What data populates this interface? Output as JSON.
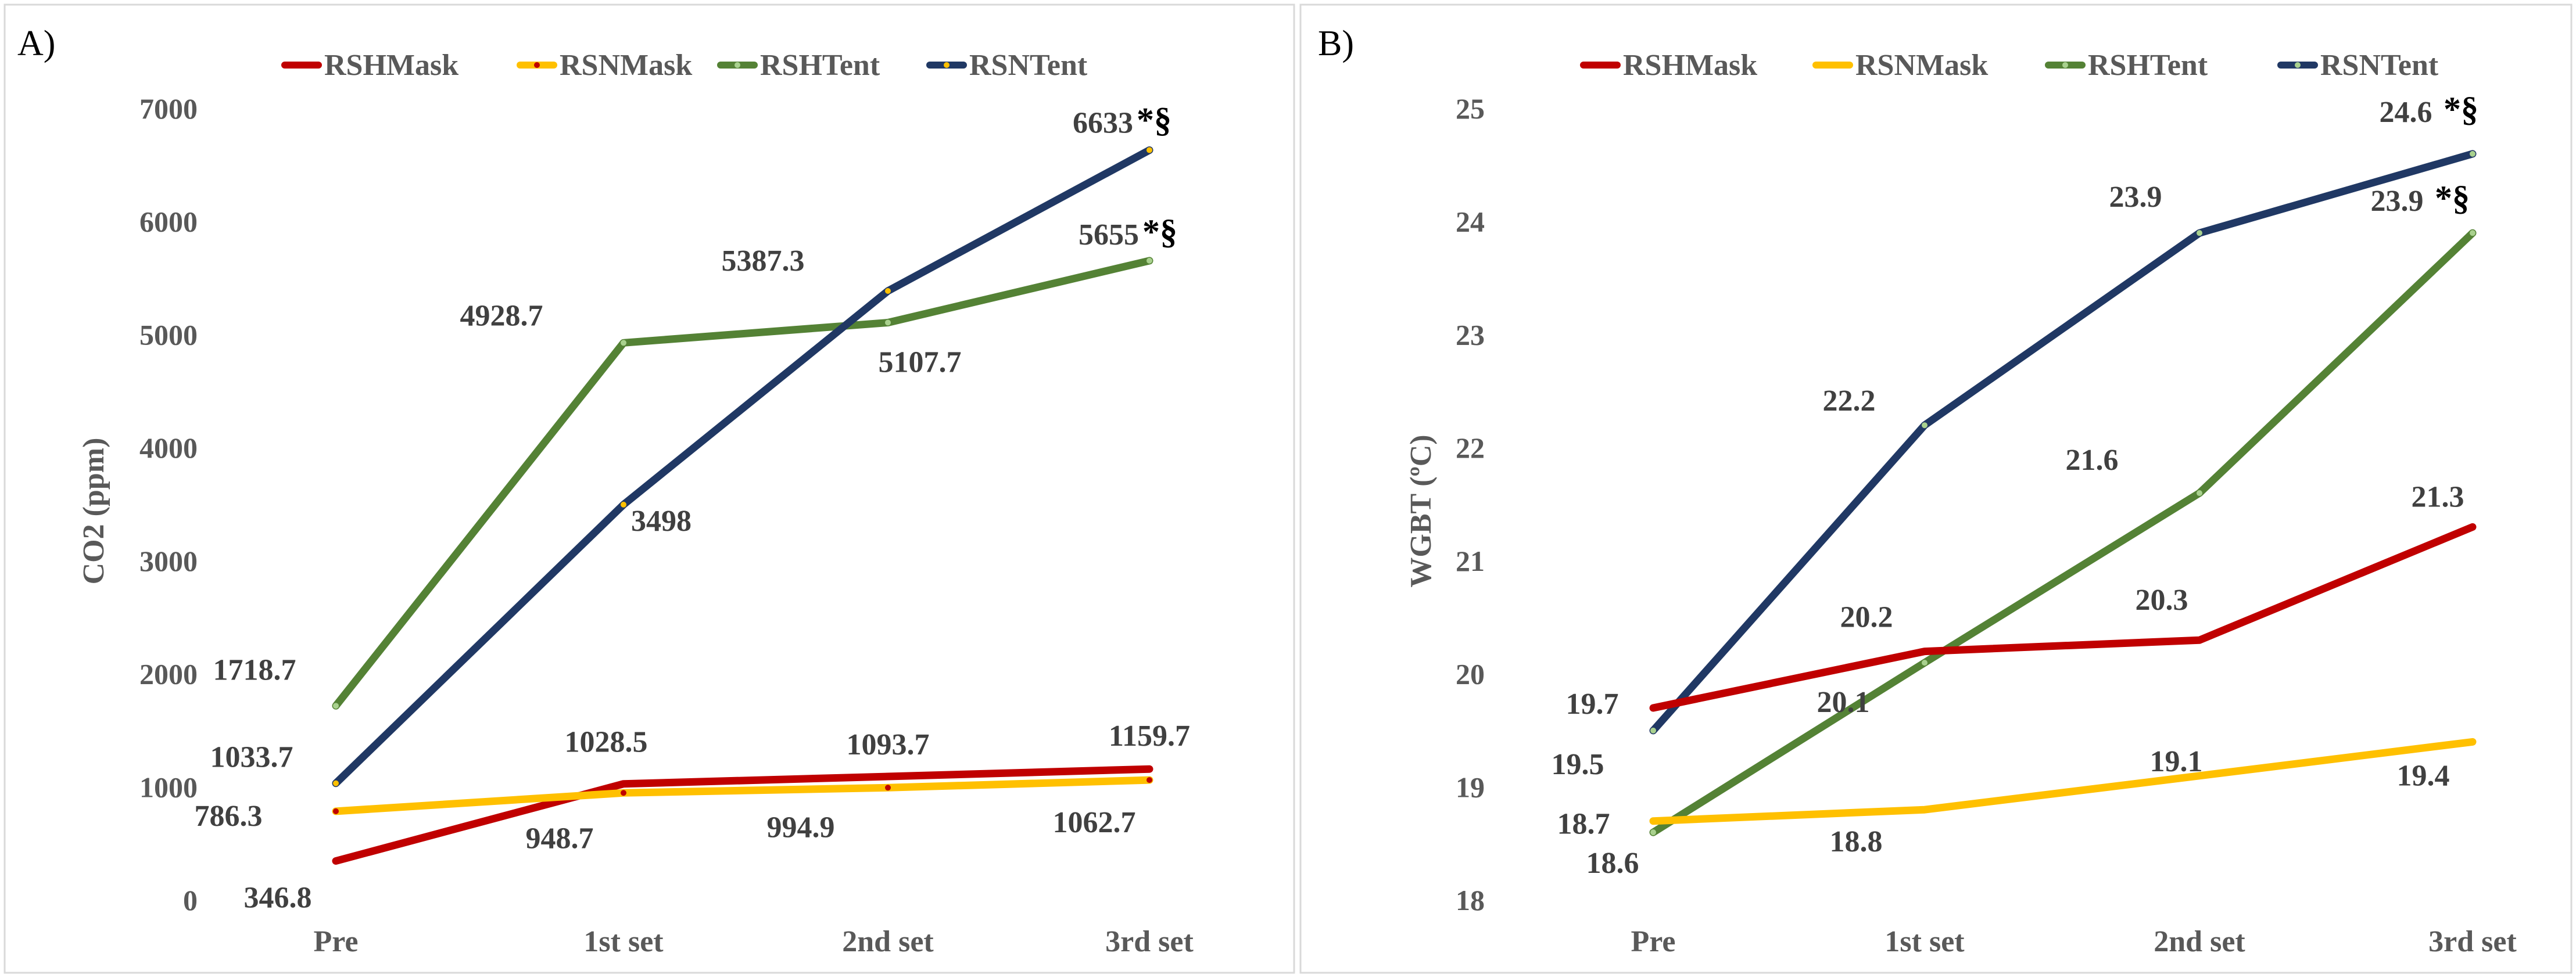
{
  "chart_data": [
    {
      "type": "line",
      "panel_label": "A)",
      "title": "",
      "xlabel": "",
      "ylabel": "CO2 (ppm)",
      "categories": [
        "Pre",
        "1st set",
        "2nd set",
        "3rd set"
      ],
      "ylim": [
        0,
        7000
      ],
      "yticks": [
        0,
        1000,
        2000,
        3000,
        4000,
        5000,
        6000,
        7000
      ],
      "grid": false,
      "legend_position": "top",
      "series": [
        {
          "name": "RSHMask",
          "color": "#C00000",
          "marker_color": "#C00000",
          "values": [
            346.8,
            1028.5,
            1093.7,
            1159.7
          ],
          "labels": [
            "346.8",
            "1028.5",
            "1093.7",
            "1159.7"
          ]
        },
        {
          "name": "RSNMask",
          "color": "#FFC000",
          "marker_color": "#C00000",
          "values": [
            786.3,
            948.7,
            994.9,
            1062.7
          ],
          "labels": [
            "786.3",
            "948.7",
            "994.9",
            "1062.7"
          ]
        },
        {
          "name": "RSHTent",
          "color": "#548235",
          "marker_color": "#A9D18E",
          "values": [
            1718.7,
            4928.7,
            5107.7,
            5655
          ],
          "labels": [
            "1718.7",
            "4928.7",
            "5107.7",
            "5655"
          ]
        },
        {
          "name": "RSNTent",
          "color": "#203864",
          "marker_color": "#FFC000",
          "values": [
            1033.7,
            3498,
            5387.3,
            6633
          ],
          "labels": [
            "1033.7",
            "3498",
            "5387.3",
            "6633"
          ]
        }
      ],
      "annotations": [
        {
          "series": "RSNTent",
          "category": "3rd set",
          "text": "*§"
        },
        {
          "series": "RSHTent",
          "category": "3rd set",
          "text": "*§"
        }
      ]
    },
    {
      "type": "line",
      "panel_label": "B)",
      "title": "",
      "xlabel": "",
      "ylabel": "WGBT (ºC)",
      "categories": [
        "Pre",
        "1st set",
        "2nd set",
        "3rd set"
      ],
      "ylim": [
        18,
        25
      ],
      "yticks": [
        18,
        19,
        20,
        21,
        22,
        23,
        24,
        25
      ],
      "grid": false,
      "legend_position": "top",
      "series": [
        {
          "name": "RSHMask",
          "color": "#C00000",
          "marker_color": "#C00000",
          "values": [
            19.7,
            20.2,
            20.3,
            21.3
          ],
          "labels": [
            "19.7",
            "20.2",
            "20.3",
            "21.3"
          ]
        },
        {
          "name": "RSNMask",
          "color": "#FFC000",
          "marker_color": "#FFC000",
          "values": [
            18.7,
            18.8,
            19.1,
            19.4
          ],
          "labels": [
            "18.7",
            "18.8",
            "19.1",
            "19.4"
          ]
        },
        {
          "name": "RSHTent",
          "color": "#548235",
          "marker_color": "#A9D18E",
          "values": [
            18.6,
            20.1,
            21.6,
            23.9
          ],
          "labels": [
            "18.6",
            "20.1",
            "21.6",
            "23.9"
          ]
        },
        {
          "name": "RSNTent",
          "color": "#203864",
          "marker_color": "#A9D18E",
          "values": [
            19.5,
            22.2,
            23.9,
            24.6
          ],
          "labels": [
            "19.5",
            "22.2",
            "23.9",
            "24.6"
          ]
        }
      ],
      "annotations": [
        {
          "series": "RSNTent",
          "category": "3rd set",
          "text": "*§"
        },
        {
          "series": "RSHTent",
          "category": "3rd set",
          "text": "*§"
        }
      ]
    }
  ]
}
